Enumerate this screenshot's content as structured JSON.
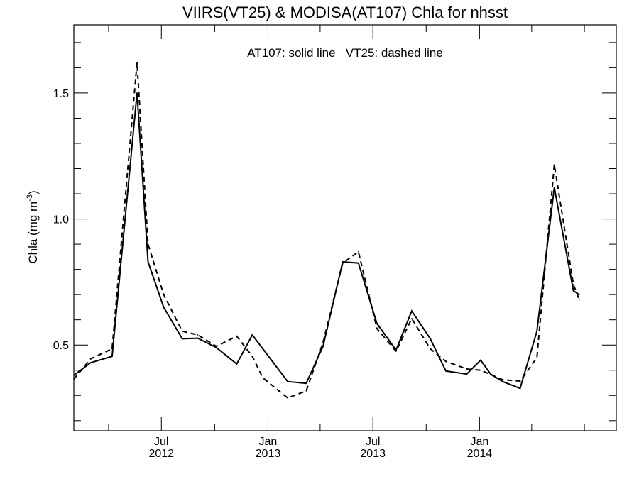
{
  "chart_data": {
    "type": "line",
    "title": "VIIRS(VT25) & MODISA(AT107)  Chla for nhsst",
    "annotation": "AT107: solid line   VT25: dashed line",
    "ylabel": "Chla (mg m",
    "ylabel_superscript": "-3",
    "ylabel_suffix": ")",
    "ylim": [
      0.16,
      1.77
    ],
    "xlim": [
      "2012-02-01",
      "2014-08-25"
    ],
    "yticks": [
      0.5,
      1.0,
      1.5
    ],
    "ytick_labels": [
      "0.5",
      "1.0",
      "1.5"
    ],
    "yminor_step": 0.1,
    "xticks": [
      {
        "date": "2012-07-01",
        "month": "Jul",
        "year": "2012"
      },
      {
        "date": "2013-01-01",
        "month": "Jan",
        "year": "2013"
      },
      {
        "date": "2013-07-01",
        "month": "Jul",
        "year": "2013"
      },
      {
        "date": "2014-01-01",
        "month": "Jan",
        "year": "2014"
      }
    ],
    "xminor_dates": [
      "2012-04-01",
      "2012-10-01",
      "2013-04-01",
      "2013-10-01",
      "2014-04-01",
      "2014-07-01"
    ],
    "series": [
      {
        "name": "AT107",
        "style": "solid",
        "points": [
          {
            "x": "2012-02-01",
            "y": 0.38
          },
          {
            "x": "2012-03-01",
            "y": 0.43
          },
          {
            "x": "2012-04-07",
            "y": 0.455
          },
          {
            "x": "2012-05-20",
            "y": 1.5
          },
          {
            "x": "2012-06-08",
            "y": 0.83
          },
          {
            "x": "2012-07-05",
            "y": 0.65
          },
          {
            "x": "2012-08-06",
            "y": 0.525
          },
          {
            "x": "2012-09-02",
            "y": 0.527
          },
          {
            "x": "2012-10-04",
            "y": 0.49
          },
          {
            "x": "2012-11-08",
            "y": 0.425
          },
          {
            "x": "2012-12-05",
            "y": 0.54
          },
          {
            "x": "2013-02-04",
            "y": 0.355
          },
          {
            "x": "2013-03-08",
            "y": 0.348
          },
          {
            "x": "2013-04-06",
            "y": 0.495
          },
          {
            "x": "2013-05-10",
            "y": 0.83
          },
          {
            "x": "2013-06-06",
            "y": 0.825
          },
          {
            "x": "2013-07-08",
            "y": 0.585
          },
          {
            "x": "2013-08-10",
            "y": 0.48
          },
          {
            "x": "2013-09-06",
            "y": 0.635
          },
          {
            "x": "2013-10-08",
            "y": 0.525
          },
          {
            "x": "2013-11-04",
            "y": 0.397
          },
          {
            "x": "2013-12-10",
            "y": 0.385
          },
          {
            "x": "2014-01-03",
            "y": 0.44
          },
          {
            "x": "2014-01-20",
            "y": 0.385
          },
          {
            "x": "2014-02-10",
            "y": 0.355
          },
          {
            "x": "2014-03-12",
            "y": 0.328
          },
          {
            "x": "2014-04-10",
            "y": 0.555
          },
          {
            "x": "2014-05-10",
            "y": 1.125
          },
          {
            "x": "2014-06-12",
            "y": 0.715
          },
          {
            "x": "2014-06-22",
            "y": 0.7
          }
        ]
      },
      {
        "name": "VT25",
        "style": "dashed",
        "points": [
          {
            "x": "2012-02-01",
            "y": 0.365
          },
          {
            "x": "2012-03-01",
            "y": 0.445
          },
          {
            "x": "2012-04-07",
            "y": 0.485
          },
          {
            "x": "2012-05-20",
            "y": 1.62
          },
          {
            "x": "2012-06-08",
            "y": 0.9
          },
          {
            "x": "2012-07-05",
            "y": 0.7
          },
          {
            "x": "2012-08-06",
            "y": 0.555
          },
          {
            "x": "2012-09-02",
            "y": 0.54
          },
          {
            "x": "2012-10-04",
            "y": 0.495
          },
          {
            "x": "2012-11-08",
            "y": 0.535
          },
          {
            "x": "2012-12-05",
            "y": 0.455
          },
          {
            "x": "2012-12-23",
            "y": 0.37
          },
          {
            "x": "2013-02-04",
            "y": 0.29
          },
          {
            "x": "2013-03-08",
            "y": 0.318
          },
          {
            "x": "2013-04-06",
            "y": 0.51
          },
          {
            "x": "2013-05-10",
            "y": 0.825
          },
          {
            "x": "2013-06-06",
            "y": 0.87
          },
          {
            "x": "2013-07-08",
            "y": 0.565
          },
          {
            "x": "2013-08-10",
            "y": 0.475
          },
          {
            "x": "2013-09-06",
            "y": 0.605
          },
          {
            "x": "2013-10-08",
            "y": 0.485
          },
          {
            "x": "2013-11-04",
            "y": 0.435
          },
          {
            "x": "2013-12-10",
            "y": 0.405
          },
          {
            "x": "2014-01-03",
            "y": 0.4
          },
          {
            "x": "2014-02-10",
            "y": 0.362
          },
          {
            "x": "2014-03-12",
            "y": 0.357
          },
          {
            "x": "2014-04-10",
            "y": 0.45
          },
          {
            "x": "2014-05-10",
            "y": 1.215
          },
          {
            "x": "2014-06-12",
            "y": 0.74
          },
          {
            "x": "2014-06-22",
            "y": 0.68
          }
        ]
      }
    ]
  }
}
